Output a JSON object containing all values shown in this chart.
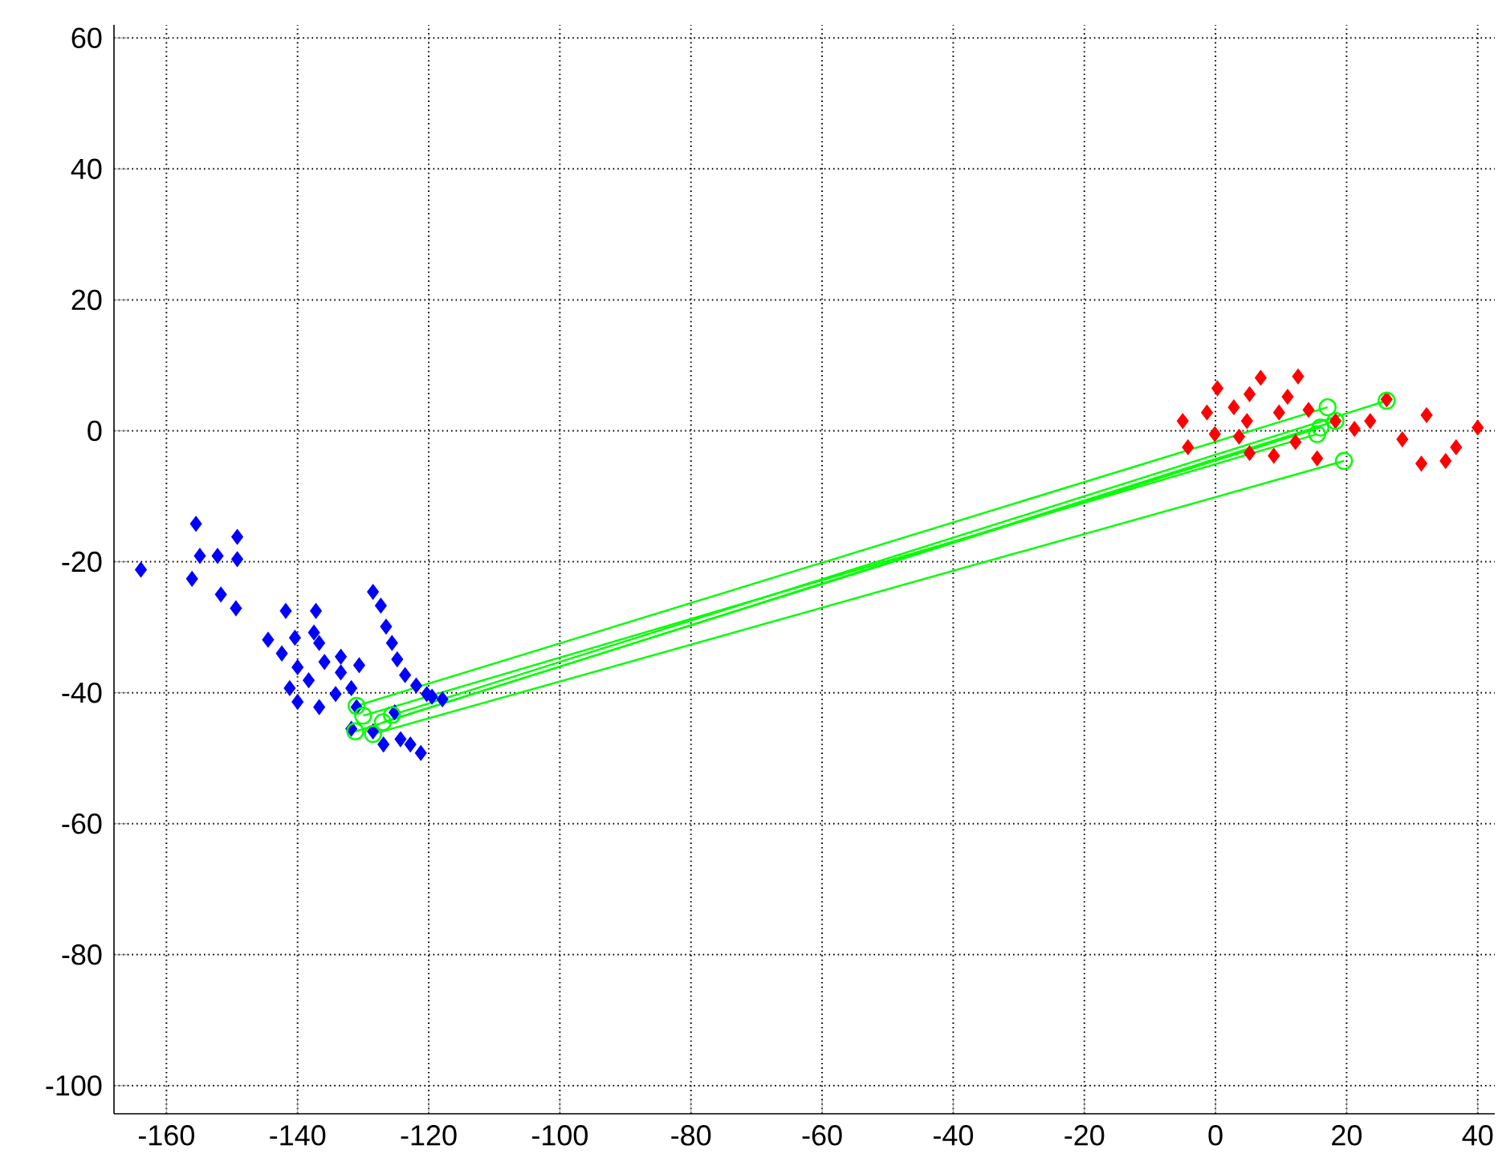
{
  "chart_data": {
    "type": "scatter",
    "xlim": [
      -168,
      42.6
    ],
    "ylim": [
      -104.3,
      62
    ],
    "xticks": [
      -160,
      -140,
      -120,
      -100,
      -80,
      -60,
      -40,
      -20,
      0,
      20,
      40
    ],
    "yticks": [
      -100,
      -80,
      -60,
      -40,
      -20,
      0,
      20,
      40,
      60
    ],
    "grid": true,
    "series": [
      {
        "color": "#0000ff",
        "marker": "diamond",
        "x": [
          -163.9,
          -155.5,
          -149.2,
          -154.9,
          -152.2,
          -149.2,
          -156.1,
          -151.7,
          -149.4,
          -141.8,
          -137.2,
          -144.5,
          -140.4,
          -137.5,
          -142.4,
          -136.7,
          -133.4,
          -130.6,
          -135.9,
          -133.4,
          -140,
          -141.2,
          -140,
          -136.7,
          -134.2,
          -131.8,
          -138.3,
          -131,
          -131.8,
          -128.5,
          -125.2,
          -124.3,
          -121.2,
          -122.8,
          -126.9,
          -119.5,
          -117.9,
          -128.5,
          -127.3,
          -126.5,
          -125.6,
          -124.8,
          -123.6,
          -121.9,
          -120.3
        ],
        "values": [
          -21.2,
          -14.2,
          -16.2,
          -19.1,
          -19.1,
          -19.6,
          -22.6,
          -25,
          -27.1,
          -27.5,
          -27.5,
          -31.9,
          -31.6,
          -30.8,
          -34,
          -32.4,
          -34.5,
          -35.8,
          -35.3,
          -36.9,
          -36.1,
          -39.3,
          -41.4,
          -42.2,
          -40.2,
          -39.3,
          -38.1,
          -42.2,
          -45.5,
          -45.9,
          -43,
          -47.1,
          -49.2,
          -47.9,
          -47.9,
          -40.6,
          -41,
          -24.6,
          -26.7,
          -29.9,
          -32.4,
          -34.9,
          -37.3,
          -38.9,
          -40.2
        ]
      },
      {
        "color": "#ff0000",
        "marker": "diamond",
        "x": [
          6.9,
          12.6,
          5.2,
          0.3,
          11,
          2.8,
          -5,
          -4.2,
          -1.3,
          4.8,
          9.7,
          14.2,
          -0.1,
          3.6,
          5.2,
          8.9,
          12.2,
          15.5,
          18.3,
          21.2,
          23.6,
          26.1,
          28.5,
          32.2,
          31.4,
          35.1,
          36.7,
          40
        ],
        "values": [
          8.1,
          8.3,
          5.6,
          6.5,
          5.2,
          3.6,
          1.5,
          -2.5,
          2.8,
          1.5,
          2.8,
          3.2,
          -0.5,
          -0.9,
          -3.4,
          -3.8,
          -1.7,
          -4.2,
          1.5,
          0.3,
          1.5,
          4.8,
          -1.3,
          2.4,
          -5,
          -4.6,
          -2.5,
          0.5
        ]
      },
      {
        "type": "line",
        "color": "#00ff00",
        "marker": "circle",
        "x": [
          -131,
          17.1
        ],
        "values": [
          -42,
          3.6
        ]
      },
      {
        "type": "line",
        "color": "#00ff00",
        "marker": "circle",
        "x": [
          -130,
          15.5
        ],
        "values": [
          -43.5,
          -0.5
        ]
      },
      {
        "type": "line",
        "color": "#00ff00",
        "marker": "circle",
        "x": [
          -128.5,
          19.6
        ],
        "values": [
          -46.3,
          -4.6
        ]
      },
      {
        "type": "line",
        "color": "#00ff00",
        "marker": "circle",
        "x": [
          -125.6,
          26.1
        ],
        "values": [
          -43.4,
          4.6
        ]
      },
      {
        "type": "line",
        "color": "#00ff00",
        "marker": "circle",
        "x": [
          -131.2,
          18.3
        ],
        "values": [
          -45.9,
          1.5
        ]
      },
      {
        "type": "line",
        "color": "#00ff00",
        "marker": "circle",
        "x": [
          -127,
          16
        ],
        "values": [
          -44.5,
          0.5
        ]
      }
    ]
  }
}
